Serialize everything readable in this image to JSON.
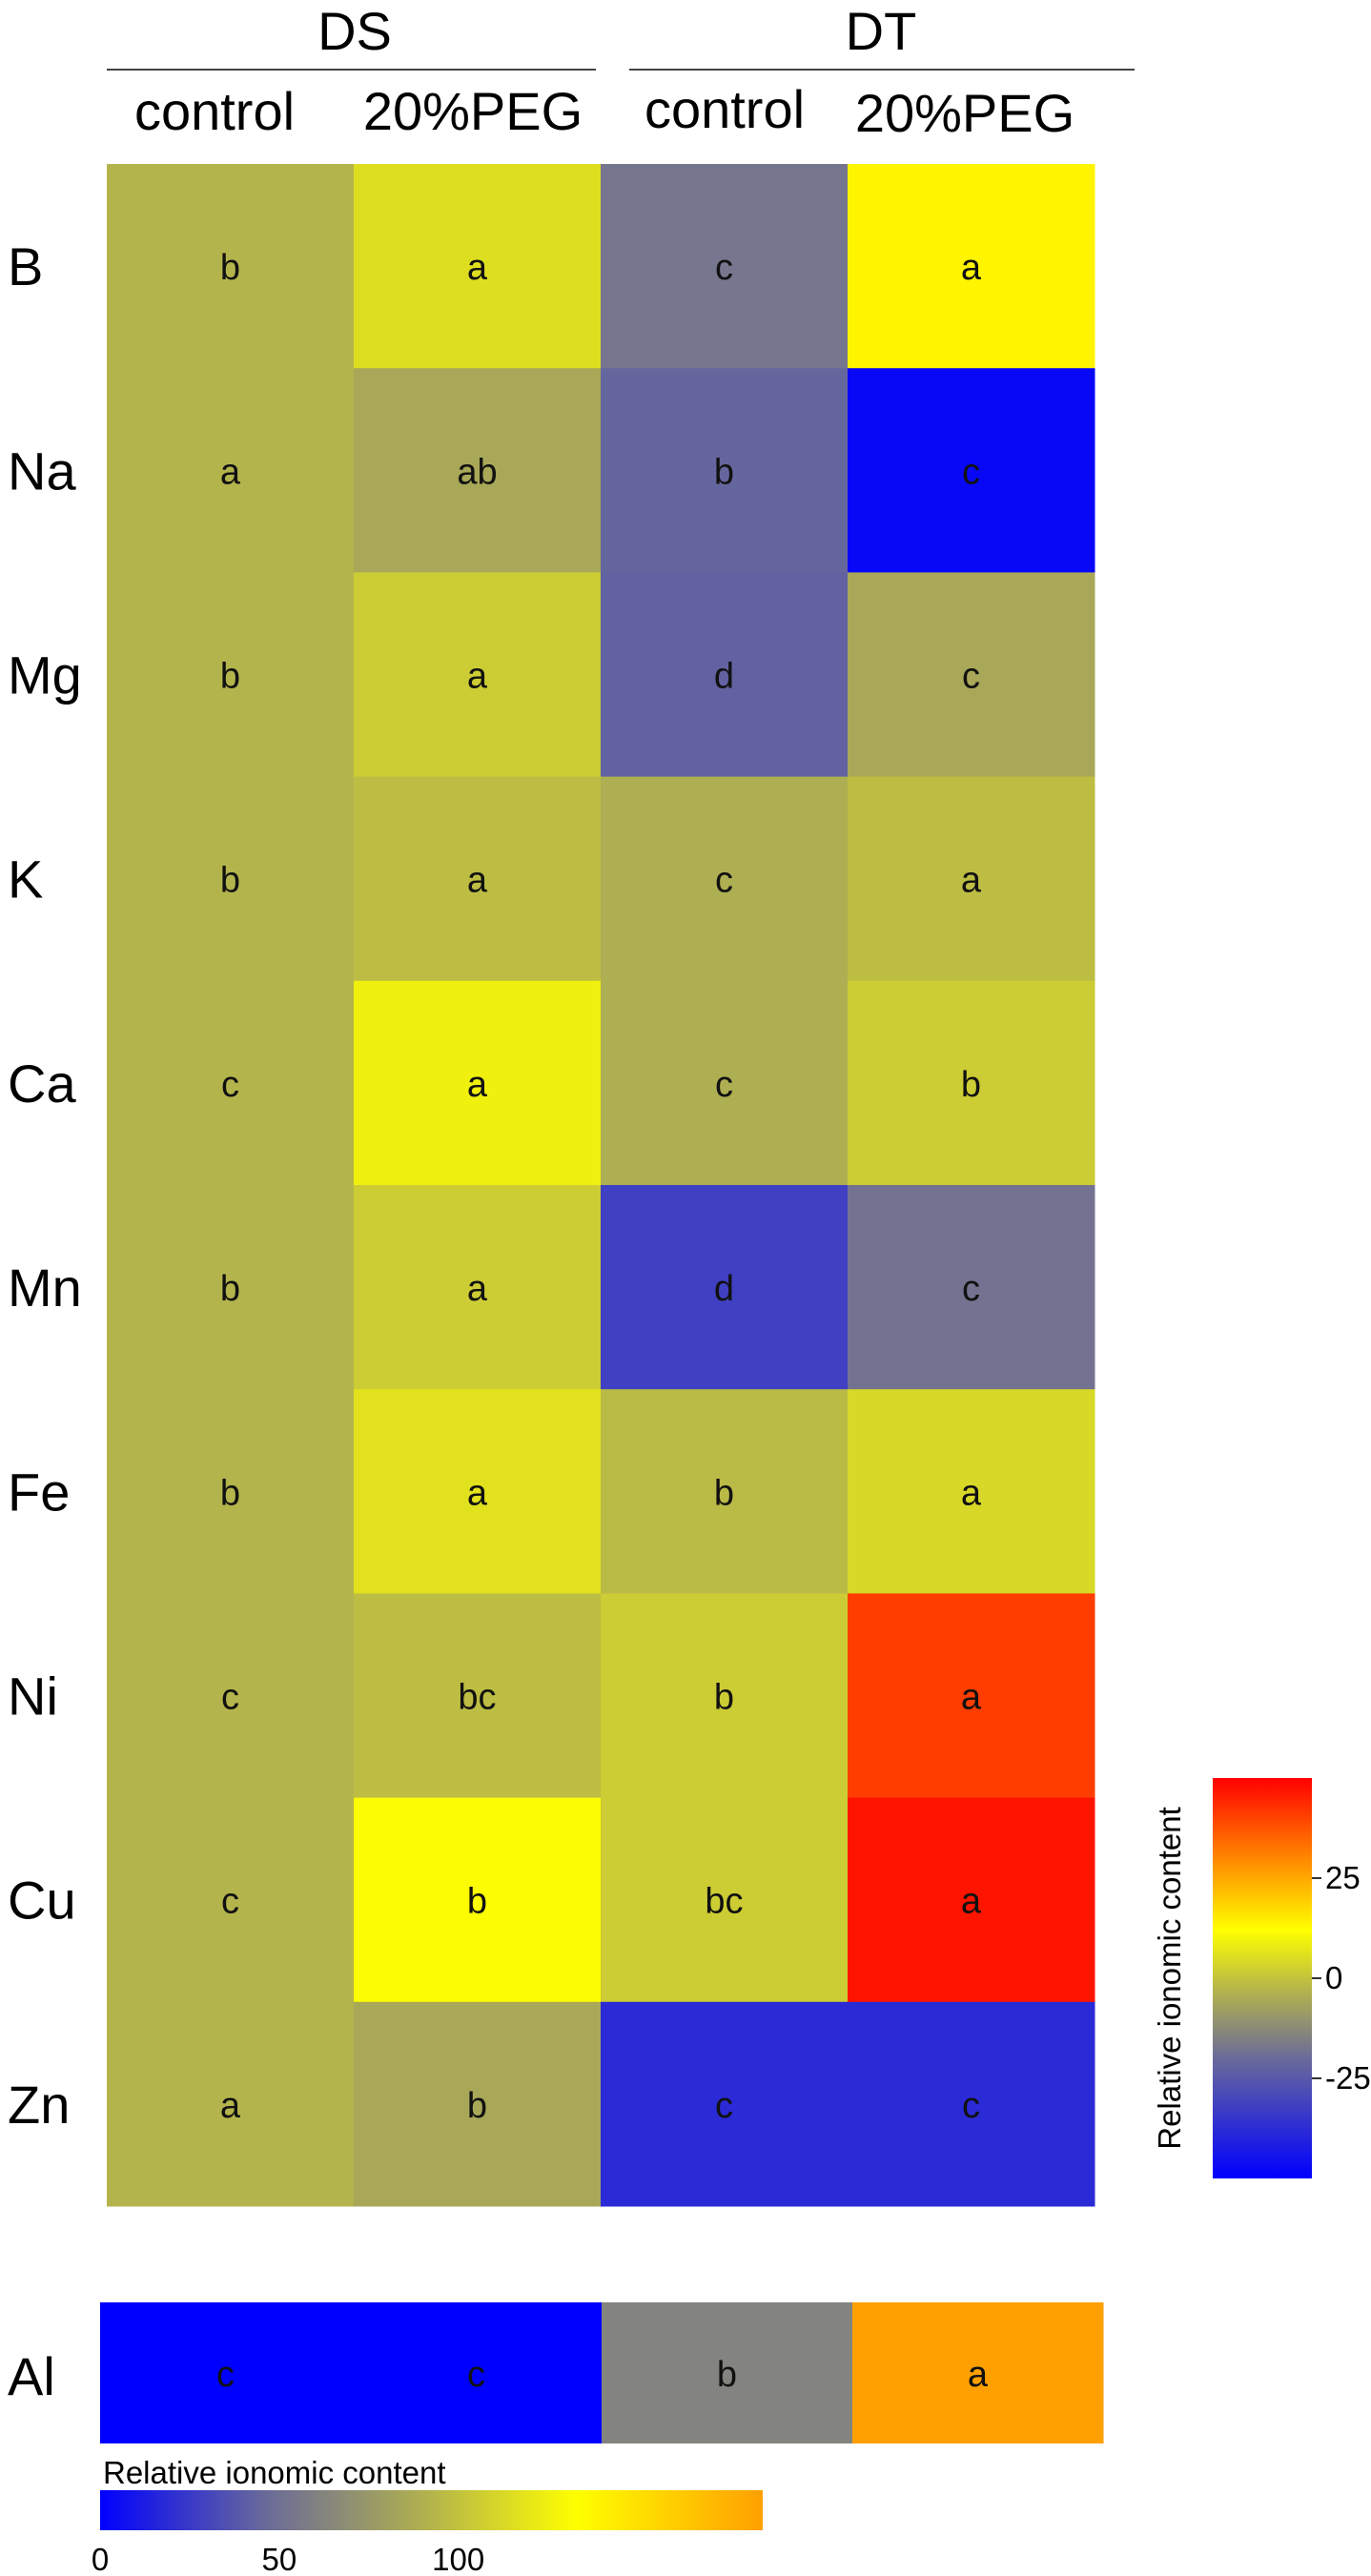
{
  "chart_data": [
    {
      "type": "heatmap",
      "group_labels": [
        "DS",
        "DT"
      ],
      "column_labels": [
        "control",
        "20%PEG",
        "control",
        "20%PEG"
      ],
      "row_labels": [
        "B",
        "Na",
        "Mg",
        "K",
        "Ca",
        "Mn",
        "Fe",
        "Ni",
        "Cu",
        "Zn"
      ],
      "values": [
        [
          0,
          14,
          -21,
          26
        ],
        [
          0,
          -4,
          -26,
          -48
        ],
        [
          0,
          8,
          -27,
          -4
        ],
        [
          0,
          3,
          -2,
          3
        ],
        [
          0,
          20,
          -2,
          8
        ],
        [
          0,
          8,
          -35,
          -22
        ],
        [
          0,
          15,
          2,
          12
        ],
        [
          0,
          3,
          8,
          44
        ],
        [
          0,
          24,
          8,
          48
        ],
        [
          0,
          -4,
          -40,
          -40
        ]
      ],
      "significance_letters": [
        [
          "b",
          "a",
          "c",
          "a"
        ],
        [
          "a",
          "ab",
          "b",
          "c"
        ],
        [
          "b",
          "a",
          "d",
          "c"
        ],
        [
          "b",
          "a",
          "c",
          "a"
        ],
        [
          "c",
          "a",
          "c",
          "b"
        ],
        [
          "b",
          "a",
          "d",
          "c"
        ],
        [
          "b",
          "a",
          "b",
          "a"
        ],
        [
          "c",
          "bc",
          "b",
          "a"
        ],
        [
          "c",
          "b",
          "bc",
          "a"
        ],
        [
          "a",
          "b",
          "c",
          "c"
        ]
      ],
      "colorbar": {
        "title": "Relative ionomic content",
        "ticks": [
          25,
          0,
          -25
        ],
        "range": [
          -50,
          50
        ],
        "orientation": "vertical",
        "placement": "right",
        "colors": [
          "#0000ff",
          "#6a6a9a",
          "#b4b44c",
          "#ffff00",
          "#ff0000"
        ]
      }
    },
    {
      "type": "heatmap",
      "row_labels": [
        "Al"
      ],
      "values": [
        [
          0,
          0,
          62,
          185
        ]
      ],
      "significance_letters": [
        [
          "c",
          "c",
          "b",
          "a"
        ]
      ],
      "colorbar": {
        "title": "Relative ionomic content",
        "ticks": [
          0,
          50,
          100
        ],
        "range": [
          0,
          185
        ],
        "orientation": "horizontal",
        "placement": "bottom",
        "colors": [
          "#0000ff",
          "#6a6a9a",
          "#b4b44c",
          "#ffff00",
          "#ffa000"
        ]
      }
    }
  ]
}
